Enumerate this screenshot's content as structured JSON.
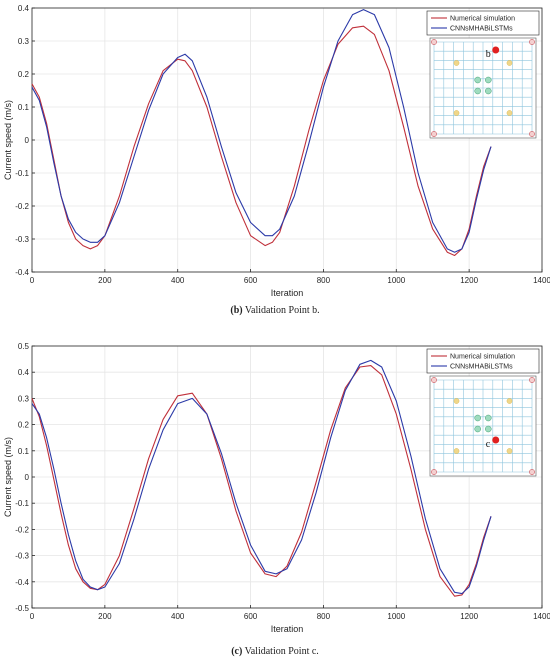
{
  "captions": [
    {
      "letter": "(b)",
      "text": " Validation Point b."
    },
    {
      "letter": "(c)",
      "text": " Validation Point c."
    }
  ],
  "colors": {
    "numerical": "#c0303a",
    "model": "#2b3aa8",
    "grid": "#e6e6e6",
    "mesh": "#8fc6de"
  },
  "chart_data": [
    {
      "type": "line",
      "title": "",
      "xlabel": "Iteration",
      "ylabel": "Current speed (m/s)",
      "xlim": [
        0,
        1400
      ],
      "ylim": [
        -0.4,
        0.4
      ],
      "xticks": [
        "0",
        "200",
        "400",
        "600",
        "800",
        "1000",
        "1200",
        "1400"
      ],
      "yticks": [
        "-0.4",
        "-0.3",
        "-0.2",
        "-0.1",
        "0",
        "0.1",
        "0.2",
        "0.3",
        "0.4"
      ],
      "grid": true,
      "legend": "top-right",
      "series": [
        {
          "name": "Numerical simulation",
          "x": [
            0,
            20,
            40,
            60,
            80,
            100,
            120,
            140,
            160,
            180,
            200,
            240,
            280,
            320,
            360,
            400,
            420,
            440,
            480,
            520,
            560,
            600,
            640,
            660,
            680,
            720,
            760,
            800,
            840,
            880,
            910,
            940,
            980,
            1020,
            1060,
            1100,
            1140,
            1160,
            1180,
            1200,
            1220,
            1240,
            1260
          ],
          "y": [
            0.17,
            0.13,
            0.05,
            -0.06,
            -0.17,
            -0.25,
            -0.3,
            -0.32,
            -0.33,
            -0.32,
            -0.29,
            -0.17,
            -0.02,
            0.11,
            0.21,
            0.245,
            0.24,
            0.21,
            0.1,
            -0.05,
            -0.19,
            -0.29,
            -0.32,
            -0.31,
            -0.28,
            -0.14,
            0.03,
            0.18,
            0.29,
            0.34,
            0.345,
            0.32,
            0.21,
            0.04,
            -0.14,
            -0.27,
            -0.34,
            -0.35,
            -0.33,
            -0.27,
            -0.17,
            -0.08,
            -0.02
          ]
        },
        {
          "name": "CNNsMHABiLSTMs",
          "x": [
            0,
            20,
            40,
            60,
            80,
            100,
            120,
            140,
            160,
            180,
            200,
            240,
            280,
            320,
            360,
            400,
            420,
            440,
            480,
            520,
            560,
            600,
            640,
            660,
            680,
            720,
            760,
            800,
            840,
            880,
            910,
            940,
            980,
            1020,
            1060,
            1100,
            1140,
            1160,
            1180,
            1200,
            1220,
            1240,
            1260
          ],
          "y": [
            0.16,
            0.12,
            0.04,
            -0.07,
            -0.17,
            -0.24,
            -0.28,
            -0.3,
            -0.31,
            -0.31,
            -0.29,
            -0.19,
            -0.05,
            0.09,
            0.2,
            0.25,
            0.26,
            0.24,
            0.13,
            -0.02,
            -0.16,
            -0.25,
            -0.29,
            -0.29,
            -0.27,
            -0.17,
            -0.01,
            0.16,
            0.3,
            0.38,
            0.395,
            0.38,
            0.28,
            0.1,
            -0.1,
            -0.25,
            -0.33,
            -0.34,
            -0.33,
            -0.28,
            -0.18,
            -0.09,
            -0.02
          ]
        }
      ],
      "inset_point": "b"
    },
    {
      "type": "line",
      "title": "",
      "xlabel": "Iteration",
      "ylabel": "Current speed (m/s)",
      "xlim": [
        0,
        1400
      ],
      "ylim": [
        -0.5,
        0.5
      ],
      "xticks": [
        "0",
        "200",
        "400",
        "600",
        "800",
        "1000",
        "1200",
        "1400"
      ],
      "yticks": [
        "-0.5",
        "-0.4",
        "-0.3",
        "-0.2",
        "-0.1",
        "0",
        "0.1",
        "0.2",
        "0.3",
        "0.4",
        "0.5"
      ],
      "grid": true,
      "legend": "top-right",
      "series": [
        {
          "name": "Numerical simulation",
          "x": [
            0,
            20,
            40,
            60,
            80,
            100,
            120,
            140,
            160,
            180,
            200,
            240,
            280,
            320,
            360,
            400,
            440,
            480,
            520,
            560,
            600,
            640,
            670,
            700,
            740,
            780,
            820,
            860,
            900,
            930,
            960,
            1000,
            1040,
            1080,
            1120,
            1160,
            1180,
            1200,
            1220,
            1240,
            1260
          ],
          "y": [
            0.3,
            0.23,
            0.12,
            -0.01,
            -0.14,
            -0.26,
            -0.35,
            -0.4,
            -0.425,
            -0.43,
            -0.41,
            -0.3,
            -0.12,
            0.07,
            0.22,
            0.31,
            0.32,
            0.24,
            0.07,
            -0.13,
            -0.29,
            -0.37,
            -0.38,
            -0.34,
            -0.21,
            -0.02,
            0.18,
            0.34,
            0.42,
            0.425,
            0.39,
            0.24,
            0.03,
            -0.2,
            -0.38,
            -0.455,
            -0.45,
            -0.41,
            -0.33,
            -0.23,
            -0.15
          ]
        },
        {
          "name": "CNNsMHABiLSTMs",
          "x": [
            0,
            20,
            40,
            60,
            80,
            100,
            120,
            140,
            160,
            180,
            200,
            240,
            280,
            320,
            360,
            400,
            440,
            480,
            520,
            560,
            600,
            640,
            670,
            700,
            740,
            780,
            820,
            860,
            900,
            930,
            960,
            1000,
            1040,
            1080,
            1120,
            1160,
            1180,
            1200,
            1220,
            1240,
            1260
          ],
          "y": [
            0.28,
            0.24,
            0.15,
            0.03,
            -0.1,
            -0.22,
            -0.32,
            -0.39,
            -0.42,
            -0.43,
            -0.42,
            -0.33,
            -0.16,
            0.03,
            0.18,
            0.28,
            0.3,
            0.24,
            0.09,
            -0.1,
            -0.26,
            -0.36,
            -0.37,
            -0.35,
            -0.24,
            -0.06,
            0.15,
            0.33,
            0.43,
            0.445,
            0.42,
            0.29,
            0.08,
            -0.16,
            -0.35,
            -0.44,
            -0.445,
            -0.42,
            -0.34,
            -0.24,
            -0.15
          ]
        }
      ],
      "inset_point": "c"
    }
  ]
}
